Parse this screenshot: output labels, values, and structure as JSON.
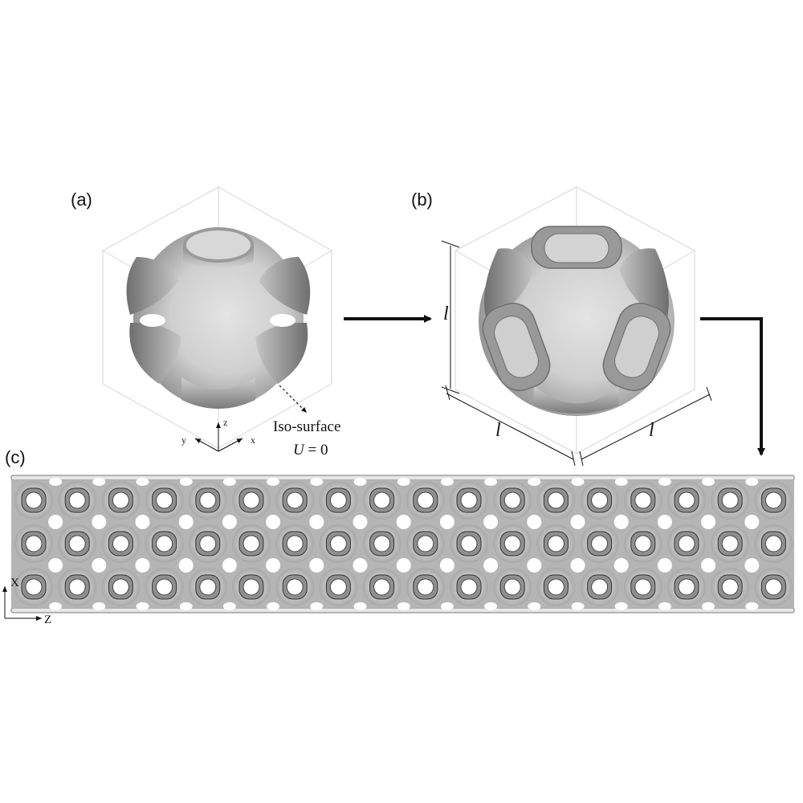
{
  "panels": {
    "a": {
      "label": "(a)"
    },
    "b": {
      "label": "(b)"
    },
    "c": {
      "label": "(c)"
    }
  },
  "panel_a": {
    "annotation_line1": "Iso-surface",
    "annotation_eq_var": "U",
    "annotation_eq_rest": " = 0",
    "axes": {
      "z": "z",
      "y": "y",
      "x": "x"
    }
  },
  "panel_b": {
    "dim_label": "l"
  },
  "panel_c": {
    "axes": {
      "x": "X",
      "z": "Z"
    }
  }
}
